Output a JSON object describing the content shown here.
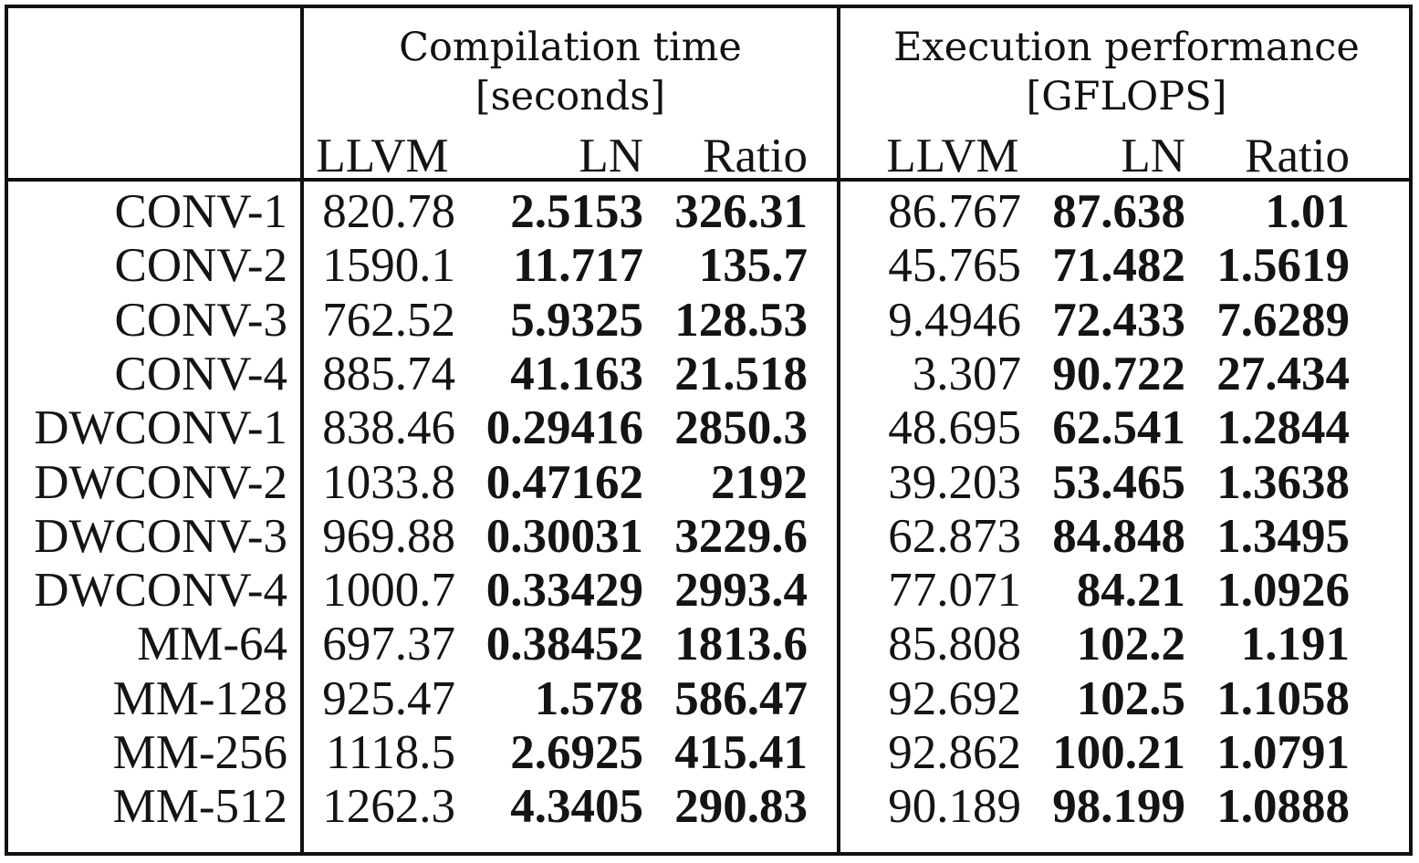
{
  "groups": {
    "compilation": {
      "line1": "Compilation time",
      "line2": "[seconds]"
    },
    "execution": {
      "line1": "Execution performance",
      "line2": "[GFLOPS]"
    }
  },
  "columns": {
    "compilation": [
      "LLVM",
      "LN",
      "Ratio"
    ],
    "execution": [
      "LLVM",
      "LN",
      "Ratio"
    ]
  },
  "rows": [
    {
      "name": "CONV-1",
      "c_llvm": "820.78",
      "c_ln": "2.5153",
      "c_ratio": "326.31",
      "e_llvm": "86.767",
      "e_ln": "87.638",
      "e_ratio": "1.01"
    },
    {
      "name": "CONV-2",
      "c_llvm": "1590.1",
      "c_ln": "11.717",
      "c_ratio": "135.7",
      "e_llvm": "45.765",
      "e_ln": "71.482",
      "e_ratio": "1.5619"
    },
    {
      "name": "CONV-3",
      "c_llvm": "762.52",
      "c_ln": "5.9325",
      "c_ratio": "128.53",
      "e_llvm": "9.4946",
      "e_ln": "72.433",
      "e_ratio": "7.6289"
    },
    {
      "name": "CONV-4",
      "c_llvm": "885.74",
      "c_ln": "41.163",
      "c_ratio": "21.518",
      "e_llvm": "3.307",
      "e_ln": "90.722",
      "e_ratio": "27.434"
    },
    {
      "name": "DWCONV-1",
      "c_llvm": "838.46",
      "c_ln": "0.29416",
      "c_ratio": "2850.3",
      "e_llvm": "48.695",
      "e_ln": "62.541",
      "e_ratio": "1.2844"
    },
    {
      "name": "DWCONV-2",
      "c_llvm": "1033.8",
      "c_ln": "0.47162",
      "c_ratio": "2192",
      "e_llvm": "39.203",
      "e_ln": "53.465",
      "e_ratio": "1.3638"
    },
    {
      "name": "DWCONV-3",
      "c_llvm": "969.88",
      "c_ln": "0.30031",
      "c_ratio": "3229.6",
      "e_llvm": "62.873",
      "e_ln": "84.848",
      "e_ratio": "1.3495"
    },
    {
      "name": "DWCONV-4",
      "c_llvm": "1000.7",
      "c_ln": "0.33429",
      "c_ratio": "2993.4",
      "e_llvm": "77.071",
      "e_ln": "84.21",
      "e_ratio": "1.0926"
    },
    {
      "name": "MM-64",
      "c_llvm": "697.37",
      "c_ln": "0.38452",
      "c_ratio": "1813.6",
      "e_llvm": "85.808",
      "e_ln": "102.2",
      "e_ratio": "1.191"
    },
    {
      "name": "MM-128",
      "c_llvm": "925.47",
      "c_ln": "1.578",
      "c_ratio": "586.47",
      "e_llvm": "92.692",
      "e_ln": "102.5",
      "e_ratio": "1.1058"
    },
    {
      "name": "MM-256",
      "c_llvm": "1118.5",
      "c_ln": "2.6925",
      "c_ratio": "415.41",
      "e_llvm": "92.862",
      "e_ln": "100.21",
      "e_ratio": "1.0791"
    },
    {
      "name": "MM-512",
      "c_llvm": "1262.3",
      "c_ln": "4.3405",
      "c_ratio": "290.83",
      "e_llvm": "90.189",
      "e_ln": "98.199",
      "e_ratio": "1.0888"
    }
  ]
}
